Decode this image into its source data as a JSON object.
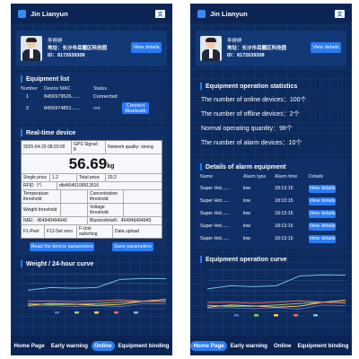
{
  "app": {
    "title": "Jin Lianyun",
    "translate_icon": "translate-icon"
  },
  "profile": {
    "name": "李婷婷",
    "address": "地址：长沙市岳麓区科技园",
    "id": "ID：8172639308",
    "view_button": "View details"
  },
  "left": {
    "equipment_list": {
      "title": "Equipment list",
      "headers": {
        "number": "Number",
        "mac": "Device MAC",
        "status": "Status"
      },
      "rows": [
        {
          "number": "1",
          "mac": "8456979526......",
          "status": "Connected",
          "action": ""
        },
        {
          "number": "2",
          "mac": "8456974851......",
          "status": "not",
          "action": "Connect Bluetooth"
        }
      ]
    },
    "realtime": {
      "title": "Real-time device",
      "datetime": "2025-04-29 08:20:00",
      "gps": "GPS Signal：8",
      "network": "Network quality: strong",
      "weight": "56.69",
      "unit": "kg",
      "single_price_label": "Single price",
      "single_price": "1.2",
      "total_price_label": "Total price",
      "total_price": "20.2",
      "rfid_label": "RFID（*）",
      "rfid": "dfsf4545199912616",
      "temp_label": "Temperature threshold",
      "conc_label": "Concentration threshold",
      "weight_thr_label": "Weight threshold",
      "volt_label": "Voltage threshold",
      "imei_label": "IMEI：454949494949",
      "bt_label": "Bluetooth/wifi：454949494949",
      "f1": "F1-Peel",
      "f12": "F12-Set zero",
      "unit_switch": "F-Unit switching",
      "data_upload": "Data upload",
      "read_btn": "Read the device parameters",
      "save_btn": "Save parameters"
    },
    "chart_title": "Weight / 24-hour curve"
  },
  "right": {
    "stats": {
      "title": "Equipment operation statistics",
      "lines": [
        "The number of online devices：100个",
        "The number of offline devices：2个",
        "Normal operating quantity：98个",
        "The number of alarm devices：10个"
      ]
    },
    "alarm": {
      "title": "Details of alarm equipment",
      "headers": {
        "name": "Name",
        "type": "Alarm type",
        "time": "Alarm time",
        "details": "Details"
      },
      "rows": [
        {
          "name": "Super Hot......",
          "type": "low",
          "time": "18:13:15",
          "action": "View details"
        },
        {
          "name": "Super Hot......",
          "type": "low",
          "time": "18:13:15",
          "action": "View details"
        },
        {
          "name": "Super Hot......",
          "type": "low",
          "time": "18:13:15",
          "action": "View details"
        },
        {
          "name": "Super Hot......",
          "type": "low",
          "time": "18:13:15",
          "action": "View details"
        },
        {
          "name": "Super Hot......",
          "type": "low",
          "time": "18:13:15",
          "action": "View details"
        }
      ]
    },
    "chart_title": "Equipment operation curve"
  },
  "nav": {
    "home": "Home Page",
    "warning": "Early warning",
    "online": "Online",
    "binding": "Equipment binding"
  },
  "colors": {
    "background": "#0d2a5c",
    "accent": "#2a7bf0",
    "card": "#102f66"
  },
  "chart_data": [
    {
      "type": "line",
      "title": "Weight / 24-hour curve",
      "categories": [
        "1",
        "2",
        "3",
        "4",
        "5",
        "6",
        "7"
      ],
      "series": [
        {
          "values": [
            120,
            132,
            101,
            134,
            90,
            230,
            210
          ],
          "color": "#5470c6"
        },
        {
          "values": [
            220,
            182,
            191,
            234,
            290,
            330,
            310
          ],
          "color": "#91cc75"
        },
        {
          "values": [
            150,
            232,
            201,
            154,
            190,
            330,
            410
          ],
          "color": "#fac858"
        },
        {
          "values": [
            320,
            332,
            301,
            334,
            390,
            330,
            320
          ],
          "color": "#ee6666"
        },
        {
          "values": [
            820,
            932,
            901,
            934,
            1290,
            1330,
            1320
          ],
          "color": "#73c0de"
        }
      ],
      "legend": [
        "",
        "",
        "",
        "",
        ""
      ],
      "ylim": [
        0,
        1500
      ]
    },
    {
      "type": "line",
      "title": "Equipment operation curve",
      "categories": [
        "1",
        "2",
        "3",
        "4",
        "5",
        "6",
        "7"
      ],
      "series": [
        {
          "values": [
            120,
            132,
            101,
            134,
            90,
            230,
            210
          ],
          "color": "#5470c6"
        },
        {
          "values": [
            220,
            182,
            191,
            234,
            290,
            330,
            310
          ],
          "color": "#91cc75"
        },
        {
          "values": [
            150,
            232,
            201,
            154,
            190,
            330,
            410
          ],
          "color": "#fac858"
        },
        {
          "values": [
            320,
            332,
            301,
            334,
            390,
            330,
            320
          ],
          "color": "#ee6666"
        },
        {
          "values": [
            820,
            932,
            901,
            934,
            1290,
            1330,
            1320
          ],
          "color": "#73c0de"
        }
      ],
      "legend": [
        "",
        "",
        "",
        "",
        ""
      ],
      "ylim": [
        0,
        1500
      ]
    }
  ]
}
